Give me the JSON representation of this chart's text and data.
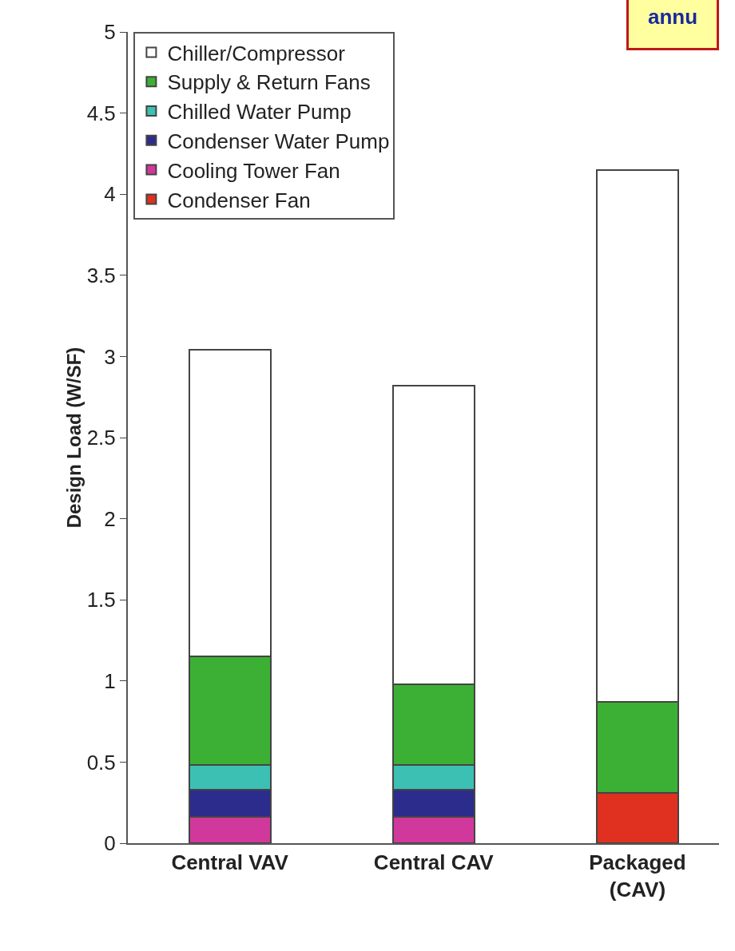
{
  "chart_data": {
    "type": "bar",
    "stacked": true,
    "ylabel": "Design Load (W/SF)",
    "categories": [
      "Central VAV",
      "Central CAV",
      "Packaged\n(CAV)"
    ],
    "series": [
      {
        "name": "Condenser Fan",
        "color": "#e03020",
        "values": [
          null,
          null,
          0.31
        ]
      },
      {
        "name": "Cooling Tower Fan",
        "color": "#d0389c",
        "values": [
          0.16,
          0.16,
          null
        ]
      },
      {
        "name": "Condenser Water Pump",
        "color": "#2c2c8c",
        "values": [
          0.17,
          0.17,
          null
        ]
      },
      {
        "name": "Chilled Water Pump",
        "color": "#3cc0b4",
        "values": [
          0.15,
          0.15,
          null
        ]
      },
      {
        "name": "Supply & Return Fans",
        "color": "#3cb034",
        "values": [
          0.67,
          0.5,
          0.56
        ]
      },
      {
        "name": "Chiller/Compressor",
        "color": "#ffffff",
        "values": [
          1.89,
          1.84,
          3.28
        ]
      }
    ],
    "ylim": [
      0,
      5
    ],
    "yticks": [
      0,
      0.5,
      1,
      1.5,
      2,
      2.5,
      3,
      3.5,
      4,
      4.5,
      5
    ],
    "grid": false,
    "legend": "top left",
    "annotations": [
      "annu"
    ]
  }
}
